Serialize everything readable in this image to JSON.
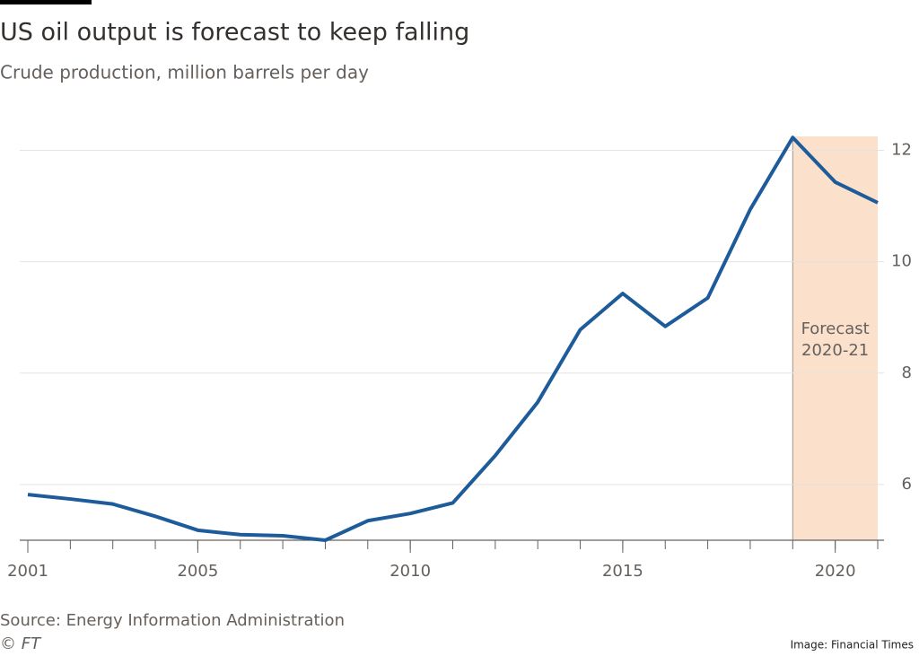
{
  "chart_data": {
    "type": "line",
    "title": "US oil output is forecast to keep falling",
    "subtitle": "Crude production, million barrels per day",
    "x": [
      2001,
      2002,
      2003,
      2004,
      2005,
      2006,
      2007,
      2008,
      2009,
      2010,
      2011,
      2012,
      2013,
      2014,
      2015,
      2016,
      2017,
      2018,
      2019,
      2020,
      2021
    ],
    "series": [
      {
        "color": "#1d5b9a",
        "values": [
          5.82,
          5.74,
          5.65,
          5.43,
          5.18,
          5.1,
          5.08,
          5.0,
          5.35,
          5.48,
          5.67,
          6.52,
          7.48,
          8.78,
          9.43,
          8.84,
          9.35,
          10.94,
          12.23,
          11.43,
          11.06
        ]
      }
    ],
    "xlim": [
      2001,
      2021
    ],
    "xticks": [
      2001,
      2005,
      2010,
      2015,
      2020
    ],
    "ylim": [
      5,
      12.25
    ],
    "yticks": [
      6,
      8,
      10,
      12
    ],
    "grid": true,
    "forecast_range": [
      2019,
      2021
    ],
    "forecast_color": "#fbe0cc",
    "annotation": [
      "Forecast",
      "2020-21"
    ],
    "source": "Source: Energy Information Administration",
    "copyright": "© FT",
    "credit": "Image: Financial Times"
  }
}
